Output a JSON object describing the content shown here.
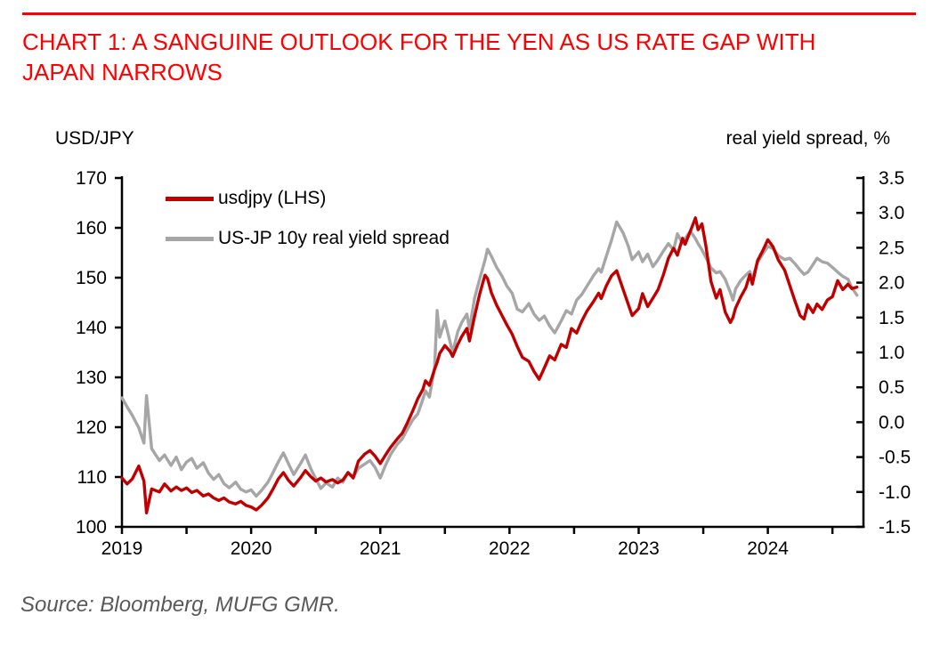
{
  "header": {
    "title_line1": "CHART 1: A SANGUINE OUTLOOK FOR THE YEN AS US RATE GAP WITH",
    "title_line2": "JAPAN NARROWS",
    "title_color": "#fe0000"
  },
  "source": "Source: Bloomberg, MUFG GMR.",
  "source_color": "#595959",
  "legend": {
    "items": [
      {
        "label": "usdjpy (LHS)",
        "color": "#c00000"
      },
      {
        "label": "US-JP 10y real yield spread",
        "color": "#a6a6a6"
      }
    ]
  },
  "chart_data": {
    "type": "line",
    "title": "CHART 1: A SANGUINE OUTLOOK FOR THE YEN AS US RATE GAP WITH JAPAN NARROWS",
    "grid": "off",
    "legend_position": "top-left-inside",
    "x_domain": [
      2019.0,
      2024.74
    ],
    "x_tick_step": 0.5,
    "x_axis": {
      "label_values": [
        2019,
        2020,
        2021,
        2022,
        2023,
        2024
      ],
      "labels": [
        "2019",
        "2020",
        "2021",
        "2022",
        "2023",
        "2024"
      ]
    },
    "left_axis": {
      "title": "USD/JPY",
      "min": 100,
      "max": 170,
      "step": 10,
      "tick_values": [
        170,
        160,
        150,
        140,
        130,
        120,
        110,
        100
      ],
      "tick_labels": [
        "170",
        "160",
        "150",
        "140",
        "130",
        "120",
        "110",
        "100"
      ]
    },
    "right_axis": {
      "title": "real yield spread, %",
      "min": -1.5,
      "max": 3.5,
      "step": 0.5,
      "tick_values": [
        3.5,
        3.0,
        2.5,
        2.0,
        1.5,
        1.0,
        0.5,
        0.0,
        -0.5,
        -1.0,
        -1.5
      ],
      "tick_labels": [
        "3.5",
        "3.0",
        "2.5",
        "2.0",
        "1.5",
        "1.0",
        "0.5",
        "0.0",
        "-0.5",
        "-1.0",
        "-1.5"
      ]
    },
    "t": [
      2019.0,
      2019.04,
      2019.08,
      2019.13,
      2019.17,
      2019.19,
      2019.23,
      2019.29,
      2019.33,
      2019.38,
      2019.42,
      2019.46,
      2019.5,
      2019.54,
      2019.58,
      2019.63,
      2019.67,
      2019.71,
      2019.75,
      2019.79,
      2019.83,
      2019.88,
      2019.92,
      2019.96,
      2020.0,
      2020.04,
      2020.08,
      2020.13,
      2020.17,
      2020.21,
      2020.25,
      2020.29,
      2020.33,
      2020.38,
      2020.42,
      2020.46,
      2020.5,
      2020.54,
      2020.58,
      2020.63,
      2020.67,
      2020.71,
      2020.75,
      2020.79,
      2020.83,
      2020.88,
      2020.92,
      2020.96,
      2021.0,
      2021.04,
      2021.08,
      2021.13,
      2021.17,
      2021.21,
      2021.25,
      2021.29,
      2021.33,
      2021.35,
      2021.38,
      2021.42,
      2021.44,
      2021.46,
      2021.5,
      2021.54,
      2021.56,
      2021.6,
      2021.63,
      2021.67,
      2021.69,
      2021.73,
      2021.77,
      2021.81,
      2021.83,
      2021.86,
      2021.9,
      2021.94,
      2021.98,
      2022.02,
      2022.06,
      2022.1,
      2022.15,
      2022.19,
      2022.23,
      2022.27,
      2022.31,
      2022.35,
      2022.4,
      2022.44,
      2022.48,
      2022.52,
      2022.56,
      2022.6,
      2022.65,
      2022.69,
      2022.71,
      2022.75,
      2022.79,
      2022.83,
      2022.88,
      2022.92,
      2022.95,
      2023.0,
      2023.03,
      2023.07,
      2023.11,
      2023.15,
      2023.19,
      2023.23,
      2023.27,
      2023.3,
      2023.34,
      2023.36,
      2023.4,
      2023.44,
      2023.46,
      2023.49,
      2023.52,
      2023.56,
      2023.6,
      2023.63,
      2023.67,
      2023.71,
      2023.73,
      2023.75,
      2023.79,
      2023.83,
      2023.86,
      2023.88,
      2023.92,
      2023.96,
      2024.0,
      2024.04,
      2024.08,
      2024.13,
      2024.17,
      2024.21,
      2024.25,
      2024.28,
      2024.31,
      2024.35,
      2024.38,
      2024.42,
      2024.46,
      2024.5,
      2024.54,
      2024.58,
      2024.62,
      2024.65,
      2024.69
    ],
    "series": [
      {
        "name": "usdjpy (LHS)",
        "axis": "left",
        "color": "#c00000",
        "values": [
          109.8,
          108.6,
          109.6,
          112.2,
          109.2,
          102.8,
          107.6,
          107.0,
          108.6,
          107.2,
          108.0,
          107.3,
          107.8,
          106.9,
          107.3,
          106.2,
          106.6,
          105.8,
          105.3,
          105.8,
          105.0,
          104.6,
          105.1,
          104.3,
          104.0,
          103.4,
          104.3,
          105.8,
          107.6,
          109.6,
          110.9,
          109.3,
          108.2,
          109.8,
          111.3,
          110.1,
          109.2,
          109.8,
          109.0,
          109.5,
          108.8,
          109.4,
          110.9,
          109.8,
          113.2,
          114.6,
          115.3,
          114.2,
          112.7,
          114.4,
          116.0,
          117.6,
          118.8,
          120.9,
          123.2,
          125.7,
          127.6,
          129.3,
          128.4,
          131.6,
          133.0,
          134.8,
          136.4,
          135.2,
          134.2,
          136.6,
          138.2,
          139.8,
          137.3,
          142.3,
          146.8,
          150.5,
          149.8,
          147.0,
          144.5,
          142.5,
          140.5,
          138.7,
          136.2,
          134.0,
          133.2,
          131.2,
          129.6,
          131.9,
          134.3,
          133.5,
          136.6,
          136.0,
          139.8,
          138.9,
          141.3,
          143.3,
          145.2,
          146.9,
          145.8,
          148.4,
          150.4,
          151.4,
          147.6,
          144.6,
          142.4,
          143.8,
          146.8,
          144.2,
          145.9,
          147.6,
          150.5,
          153.9,
          155.9,
          154.5,
          157.9,
          156.7,
          159.3,
          162.0,
          159.6,
          160.8,
          156.4,
          149.2,
          145.9,
          147.6,
          143.1,
          141.0,
          142.0,
          143.9,
          146.1,
          148.0,
          150.6,
          148.7,
          153.4,
          155.4,
          157.6,
          156.2,
          153.6,
          151.5,
          148.4,
          145.3,
          142.4,
          141.7,
          144.6,
          143.0,
          144.7,
          143.6,
          145.5,
          146.2,
          149.4,
          147.6,
          148.7,
          147.8,
          148.1
        ]
      },
      {
        "name": "US-JP 10y real yield spread",
        "axis": "right",
        "color": "#a6a6a6",
        "values": [
          0.35,
          0.22,
          0.1,
          -0.08,
          -0.3,
          0.38,
          -0.38,
          -0.55,
          -0.47,
          -0.62,
          -0.5,
          -0.68,
          -0.57,
          -0.52,
          -0.66,
          -0.58,
          -0.73,
          -0.82,
          -0.75,
          -0.88,
          -0.94,
          -0.86,
          -0.96,
          -1.0,
          -0.97,
          -1.06,
          -0.98,
          -0.86,
          -0.72,
          -0.57,
          -0.44,
          -0.6,
          -0.75,
          -0.6,
          -0.47,
          -0.66,
          -0.81,
          -0.95,
          -0.87,
          -0.93,
          -0.8,
          -0.86,
          -0.72,
          -0.79,
          -0.66,
          -0.6,
          -0.55,
          -0.65,
          -0.8,
          -0.62,
          -0.46,
          -0.32,
          -0.24,
          -0.1,
          0.03,
          0.12,
          0.33,
          0.45,
          0.36,
          0.78,
          1.6,
          1.22,
          1.45,
          1.15,
          1.0,
          1.3,
          1.43,
          1.55,
          1.34,
          1.78,
          2.06,
          2.32,
          2.48,
          2.38,
          2.22,
          2.1,
          1.95,
          1.85,
          1.62,
          1.58,
          1.7,
          1.55,
          1.46,
          1.52,
          1.38,
          1.28,
          1.45,
          1.6,
          1.55,
          1.75,
          1.83,
          1.95,
          2.1,
          2.2,
          2.15,
          2.38,
          2.61,
          2.87,
          2.71,
          2.52,
          2.33,
          2.44,
          2.3,
          2.41,
          2.23,
          2.33,
          2.45,
          2.56,
          2.47,
          2.7,
          2.56,
          2.63,
          2.74,
          2.63,
          2.56,
          2.47,
          2.36,
          2.21,
          2.14,
          2.16,
          2.05,
          1.86,
          1.75,
          1.91,
          2.03,
          2.11,
          2.16,
          2.06,
          2.29,
          2.41,
          2.52,
          2.49,
          2.39,
          2.33,
          2.35,
          2.27,
          2.18,
          2.12,
          2.15,
          2.26,
          2.35,
          2.3,
          2.28,
          2.22,
          2.15,
          2.09,
          2.05,
          1.93,
          1.82
        ]
      }
    ],
    "style": {
      "axis_color": "#000000",
      "line_width": 3.4,
      "axis_width": 2.5
    }
  }
}
